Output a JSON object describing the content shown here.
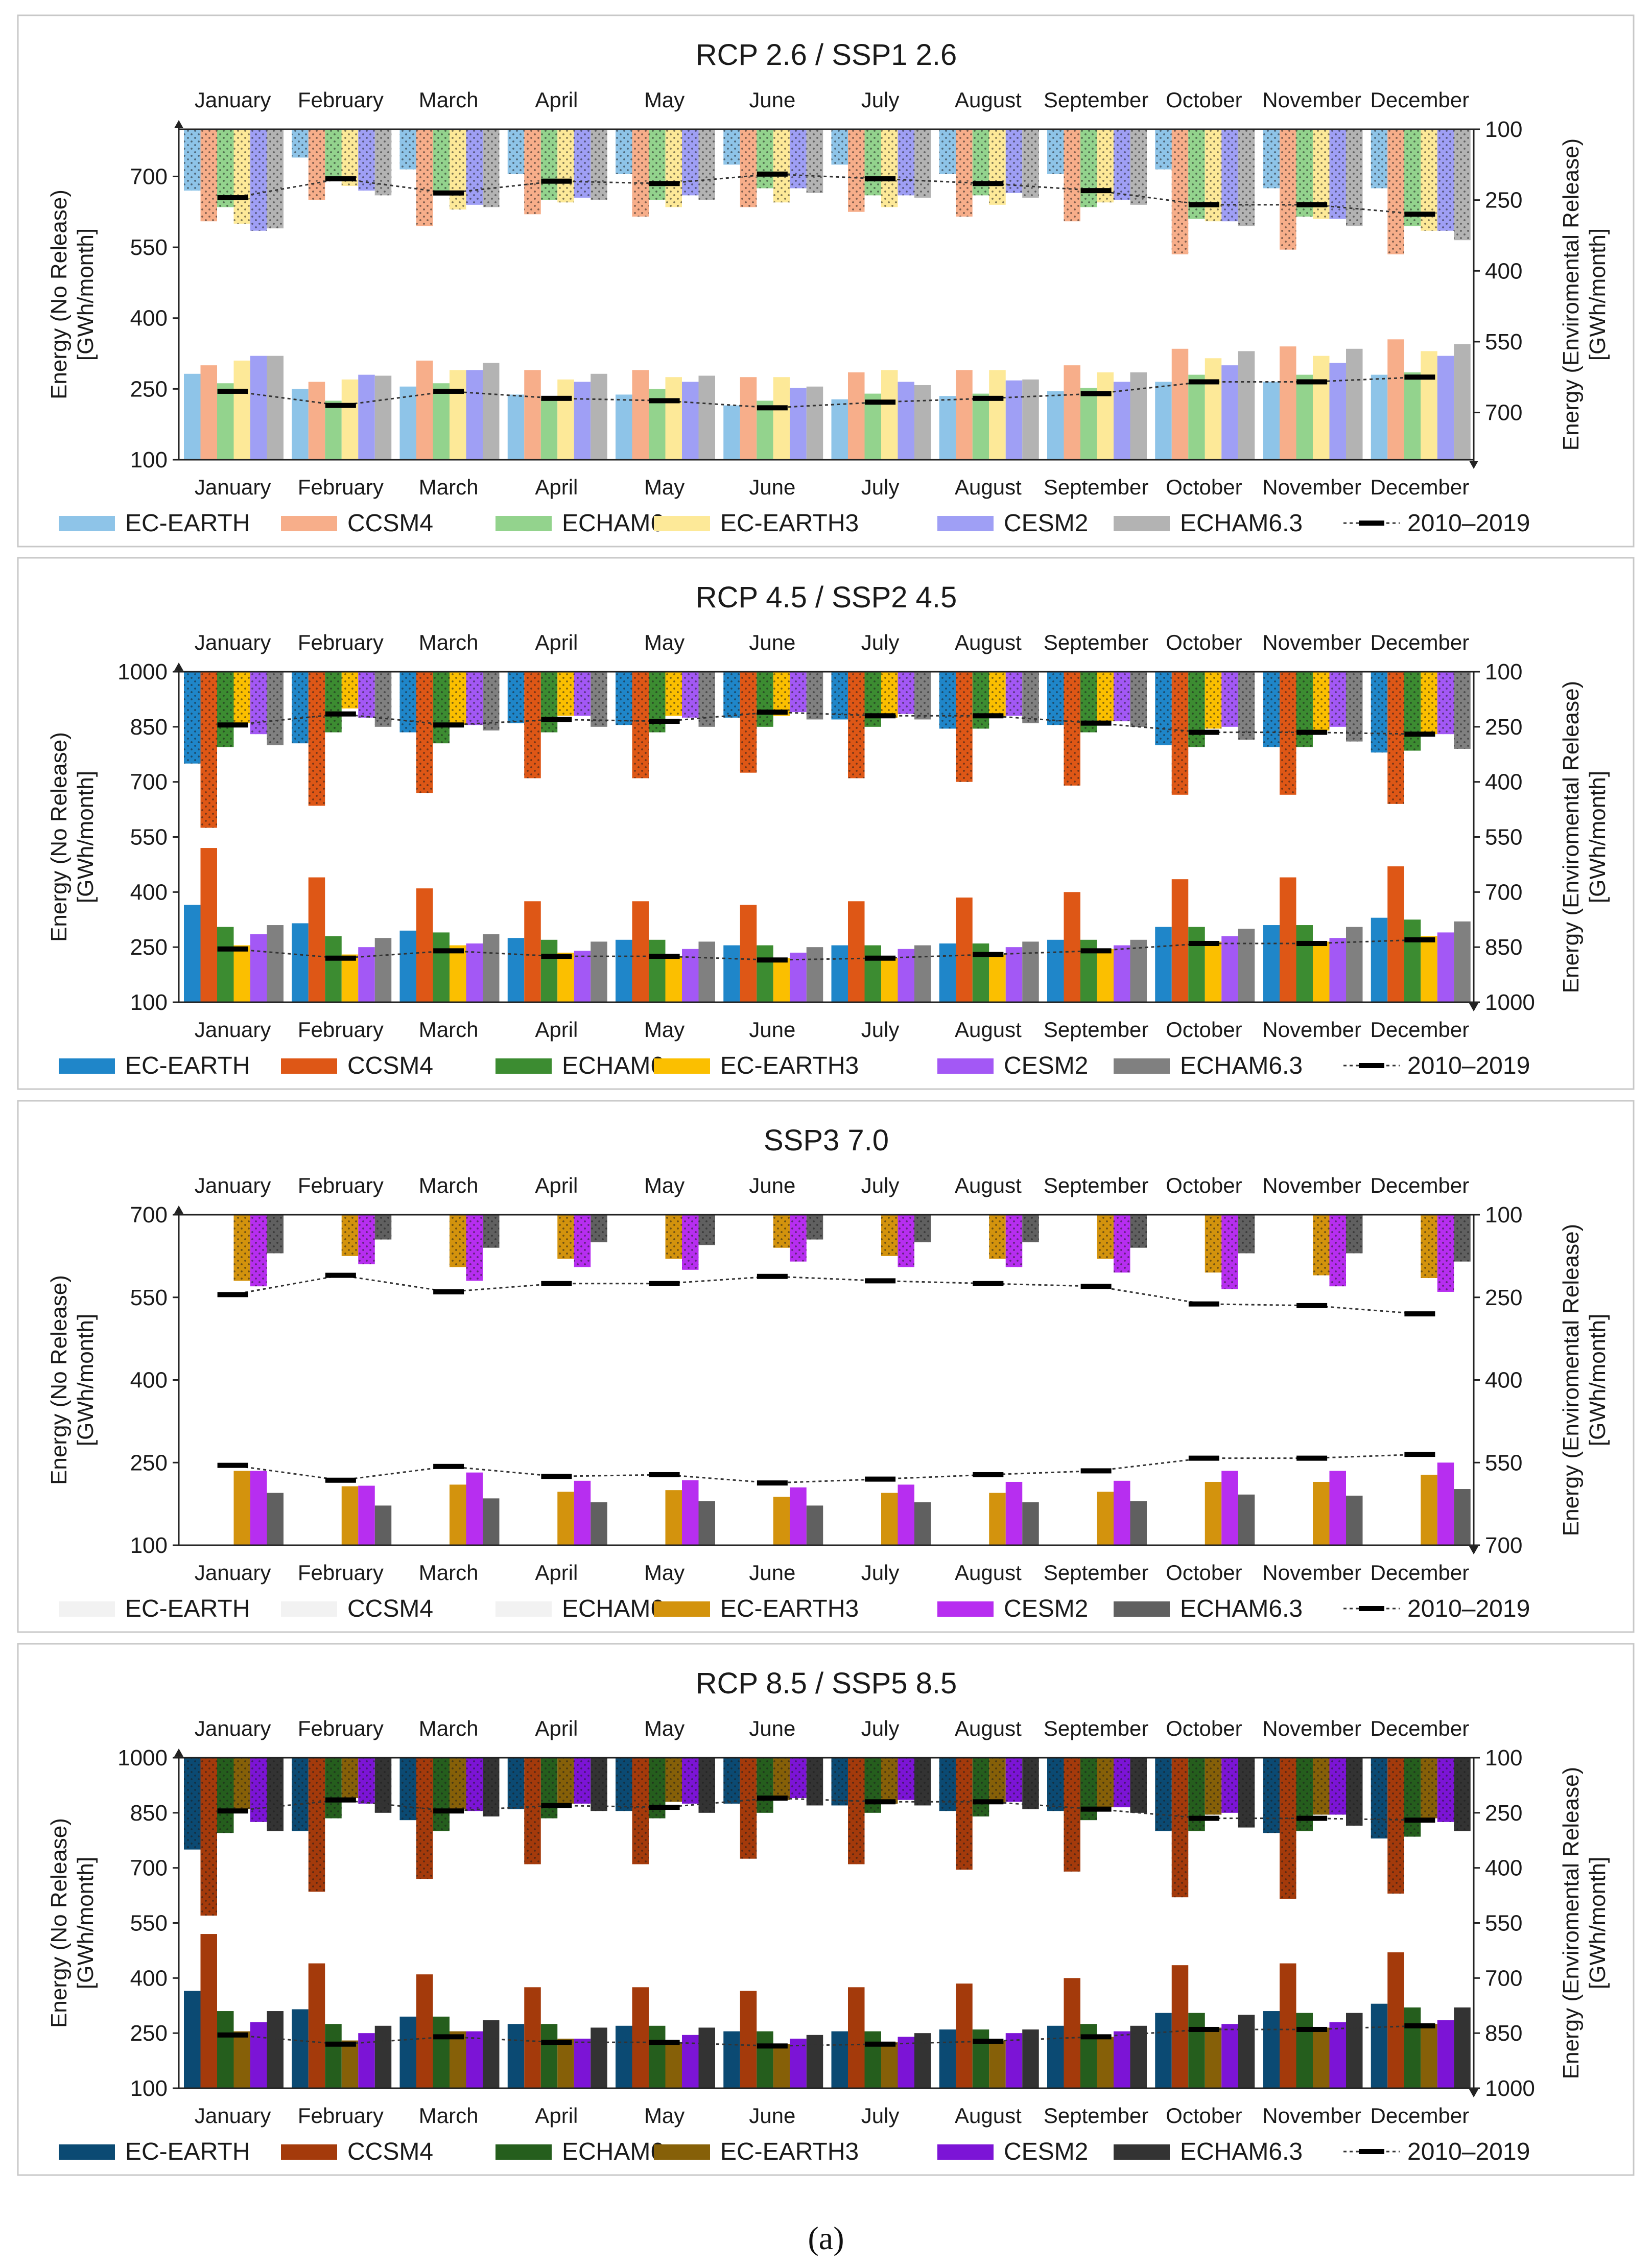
{
  "months": [
    "January",
    "February",
    "March",
    "April",
    "May",
    "June",
    "July",
    "August",
    "September",
    "October",
    "November",
    "December"
  ],
  "legend_names": [
    "EC-EARTH",
    "CCSM4",
    "ECHAM6",
    "EC-EARTH3",
    "CESM2",
    "ECHAM6.3"
  ],
  "baseline_label": "2010–2019",
  "caption": "(a)",
  "chart_data": [
    {
      "type": "bar",
      "title": "RCP 2.6 / SSP1 2.6",
      "ylabel_left": [
        "Energy (No Release)",
        "[GWh/month]"
      ],
      "ylabel_right": [
        "Energy (Enviromental Release)",
        "[GWh/month]"
      ],
      "ylim_left": [
        100,
        800
      ],
      "left_ticks": [
        100,
        250,
        400,
        550,
        700
      ],
      "right_ticks": [
        100,
        250,
        400,
        550,
        700
      ],
      "colors": [
        "#8ec4e8",
        "#f7ae8a",
        "#93d38d",
        "#fde998",
        "#9f9ff5",
        "#b3b3b3"
      ],
      "hidden_series": [],
      "no_release": {
        "EC-EARTH": [
          282,
          250,
          255,
          238,
          238,
          215,
          228,
          235,
          245,
          265,
          265,
          280
        ],
        "CCSM4": [
          300,
          265,
          310,
          290,
          290,
          275,
          285,
          290,
          300,
          335,
          340,
          355
        ],
        "ECHAM6": [
          262,
          225,
          262,
          230,
          250,
          225,
          240,
          240,
          252,
          280,
          280,
          285
        ],
        "EC-EARTH3": [
          310,
          270,
          290,
          270,
          275,
          275,
          290,
          290,
          285,
          315,
          320,
          330
        ],
        "CESM2": [
          320,
          280,
          290,
          265,
          265,
          252,
          265,
          268,
          265,
          300,
          305,
          320
        ],
        "ECHAM6.3": [
          320,
          278,
          305,
          282,
          278,
          255,
          258,
          270,
          285,
          330,
          335,
          345
        ]
      },
      "env_release": {
        "EC-EARTH": [
          230,
          160,
          185,
          195,
          195,
          175,
          175,
          195,
          195,
          185,
          225,
          225
        ],
        "CCSM4": [
          295,
          250,
          305,
          280,
          285,
          265,
          275,
          285,
          295,
          365,
          355,
          365
        ],
        "ECHAM6": [
          265,
          210,
          240,
          250,
          250,
          225,
          240,
          240,
          265,
          290,
          285,
          305
        ],
        "EC-EARTH3": [
          300,
          220,
          270,
          255,
          265,
          255,
          265,
          260,
          255,
          295,
          290,
          315
        ],
        "CESM2": [
          315,
          230,
          260,
          245,
          240,
          225,
          240,
          235,
          250,
          295,
          290,
          315
        ],
        "ECHAM6.3": [
          310,
          240,
          265,
          250,
          250,
          235,
          245,
          245,
          260,
          305,
          305,
          335
        ]
      },
      "baseline_no_release": [
        245,
        215,
        245,
        230,
        225,
        210,
        222,
        230,
        240,
        265,
        265,
        275
      ],
      "baseline_env_release": [
        245,
        205,
        235,
        210,
        215,
        195,
        205,
        215,
        230,
        260,
        260,
        280
      ]
    },
    {
      "type": "bar",
      "title": "RCP 4.5 / SSP2 4.5",
      "ylabel_left": [
        "Energy (No Release)",
        "[GWh/month]"
      ],
      "ylabel_right": [
        "Energy (Enviromental Release)",
        "[GWh/month]"
      ],
      "ylim_left": [
        100,
        1000
      ],
      "left_ticks": [
        100,
        250,
        400,
        550,
        700,
        850,
        1000
      ],
      "right_ticks": [
        100,
        250,
        400,
        550,
        700,
        850,
        1000
      ],
      "colors": [
        "#1f86c9",
        "#de5716",
        "#3c8c31",
        "#fbbf00",
        "#a358f5",
        "#808080"
      ],
      "hidden_series": [],
      "no_release": {
        "EC-EARTH": [
          365,
          315,
          295,
          275,
          270,
          255,
          255,
          260,
          270,
          305,
          310,
          330
        ],
        "CCSM4": [
          520,
          440,
          410,
          375,
          375,
          365,
          375,
          385,
          400,
          435,
          440,
          470
        ],
        "ECHAM6": [
          305,
          280,
          290,
          270,
          270,
          255,
          255,
          260,
          270,
          305,
          310,
          325
        ],
        "EC-EARTH3": [
          255,
          230,
          255,
          235,
          225,
          220,
          220,
          230,
          245,
          265,
          265,
          280
        ],
        "CESM2": [
          285,
          250,
          260,
          240,
          245,
          235,
          245,
          250,
          255,
          280,
          275,
          290
        ],
        "ECHAM6.3": [
          310,
          275,
          285,
          265,
          265,
          250,
          255,
          265,
          270,
          300,
          305,
          320
        ]
      },
      "env_release": {
        "EC-EARTH": [
          350,
          295,
          265,
          240,
          245,
          225,
          230,
          255,
          245,
          300,
          305,
          320
        ],
        "CCSM4": [
          525,
          465,
          430,
          390,
          390,
          375,
          390,
          400,
          410,
          435,
          435,
          460
        ],
        "ECHAM6": [
          305,
          265,
          295,
          265,
          265,
          250,
          250,
          255,
          265,
          305,
          305,
          315
        ],
        "EC-EARTH3": [
          240,
          200,
          245,
          220,
          220,
          220,
          225,
          225,
          235,
          255,
          260,
          270
        ],
        "CESM2": [
          270,
          225,
          245,
          220,
          225,
          210,
          215,
          220,
          235,
          250,
          250,
          270
        ],
        "ECHAM6.3": [
          300,
          250,
          260,
          250,
          250,
          230,
          230,
          240,
          250,
          285,
          290,
          310
        ]
      },
      "baseline_no_release": [
        245,
        220,
        240,
        225,
        225,
        215,
        220,
        230,
        240,
        260,
        260,
        270
      ],
      "baseline_env_release": [
        245,
        215,
        245,
        230,
        235,
        210,
        220,
        220,
        240,
        265,
        265,
        270
      ]
    },
    {
      "type": "bar",
      "title": "SSP3 7.0",
      "ylabel_left": [
        "Energy (No Release)",
        "[GWh/month]"
      ],
      "ylabel_right": [
        "Energy (Enviromental Release)",
        "[GWh/month]"
      ],
      "ylim_left": [
        100,
        700
      ],
      "left_ticks": [
        100,
        250,
        400,
        550,
        700
      ],
      "right_ticks": [
        100,
        250,
        400,
        550,
        700
      ],
      "colors": [
        "#f2f2f2",
        "#f2f2f2",
        "#f2f2f2",
        "#d3930d",
        "#b72ef0",
        "#606060"
      ],
      "hidden_series": [
        "EC-EARTH",
        "CCSM4",
        "ECHAM6"
      ],
      "no_release": {
        "EC-EARTH": [
          0,
          0,
          0,
          0,
          0,
          0,
          0,
          0,
          0,
          0,
          0,
          0
        ],
        "CCSM4": [
          0,
          0,
          0,
          0,
          0,
          0,
          0,
          0,
          0,
          0,
          0,
          0
        ],
        "ECHAM6": [
          0,
          0,
          0,
          0,
          0,
          0,
          0,
          0,
          0,
          0,
          0,
          0
        ],
        "EC-EARTH3": [
          235,
          207,
          210,
          197,
          200,
          188,
          195,
          195,
          197,
          215,
          215,
          228
        ],
        "CESM2": [
          235,
          208,
          232,
          217,
          218,
          205,
          210,
          215,
          217,
          235,
          235,
          250
        ],
        "ECHAM6.3": [
          195,
          172,
          185,
          178,
          180,
          172,
          178,
          178,
          180,
          192,
          190,
          202
        ]
      },
      "env_release": {
        "EC-EARTH": [
          0,
          0,
          0,
          0,
          0,
          0,
          0,
          0,
          0,
          0,
          0,
          0
        ],
        "CCSM4": [
          0,
          0,
          0,
          0,
          0,
          0,
          0,
          0,
          0,
          0,
          0,
          0
        ],
        "ECHAM6": [
          0,
          0,
          0,
          0,
          0,
          0,
          0,
          0,
          0,
          0,
          0,
          0
        ],
        "EC-EARTH3": [
          220,
          175,
          195,
          180,
          180,
          160,
          175,
          180,
          180,
          205,
          210,
          215
        ],
        "CESM2": [
          230,
          190,
          220,
          195,
          200,
          185,
          195,
          195,
          205,
          235,
          230,
          240
        ],
        "ECHAM6.3": [
          170,
          145,
          160,
          150,
          155,
          145,
          150,
          150,
          160,
          170,
          170,
          185
        ]
      },
      "baseline_no_release": [
        245,
        218,
        243,
        225,
        228,
        213,
        220,
        228,
        235,
        258,
        258,
        265
      ],
      "baseline_env_release": [
        245,
        210,
        240,
        225,
        225,
        212,
        220,
        225,
        230,
        262,
        265,
        280
      ]
    },
    {
      "type": "bar",
      "title": "RCP 8.5 / SSP5 8.5",
      "ylabel_left": [
        "Energy (No Release)",
        "[GWh/month]"
      ],
      "ylabel_right": [
        "Energy (Enviromental Release)",
        "[GWh/month]"
      ],
      "ylim_left": [
        100,
        1000
      ],
      "left_ticks": [
        100,
        250,
        400,
        550,
        700,
        850,
        1000
      ],
      "right_ticks": [
        100,
        250,
        400,
        550,
        700,
        850,
        1000
      ],
      "colors": [
        "#0b4a73",
        "#a43a0b",
        "#255e1d",
        "#866008",
        "#7c14d6",
        "#333333"
      ],
      "hidden_series": [],
      "no_release": {
        "EC-EARTH": [
          365,
          315,
          295,
          275,
          270,
          255,
          255,
          260,
          270,
          305,
          310,
          330
        ],
        "CCSM4": [
          520,
          440,
          410,
          375,
          375,
          365,
          375,
          385,
          400,
          435,
          440,
          470
        ],
        "ECHAM6": [
          310,
          275,
          295,
          275,
          270,
          255,
          255,
          260,
          275,
          305,
          305,
          320
        ],
        "EC-EARTH3": [
          255,
          230,
          255,
          235,
          225,
          220,
          225,
          230,
          240,
          265,
          265,
          275
        ],
        "CESM2": [
          280,
          250,
          255,
          235,
          245,
          235,
          240,
          250,
          255,
          275,
          280,
          285
        ],
        "ECHAM6.3": [
          310,
          270,
          285,
          265,
          265,
          245,
          250,
          260,
          270,
          300,
          305,
          320
        ]
      },
      "env_release": {
        "EC-EARTH": [
          350,
          300,
          270,
          240,
          245,
          225,
          230,
          245,
          245,
          300,
          305,
          320
        ],
        "CCSM4": [
          530,
          465,
          430,
          390,
          390,
          375,
          390,
          405,
          410,
          480,
          485,
          470
        ],
        "ECHAM6": [
          305,
          265,
          300,
          265,
          265,
          250,
          250,
          260,
          270,
          300,
          300,
          315
        ],
        "EC-EARTH3": [
          240,
          210,
          240,
          225,
          220,
          215,
          225,
          225,
          235,
          255,
          255,
          265
        ],
        "CESM2": [
          275,
          225,
          245,
          225,
          225,
          210,
          215,
          220,
          235,
          250,
          255,
          275
        ],
        "ECHAM6.3": [
          300,
          250,
          260,
          245,
          250,
          230,
          230,
          240,
          250,
          290,
          285,
          300
        ]
      },
      "baseline_no_release": [
        245,
        220,
        240,
        225,
        225,
        215,
        220,
        228,
        240,
        260,
        260,
        270
      ],
      "baseline_env_release": [
        245,
        215,
        245,
        230,
        235,
        210,
        220,
        220,
        240,
        265,
        265,
        270
      ]
    }
  ]
}
